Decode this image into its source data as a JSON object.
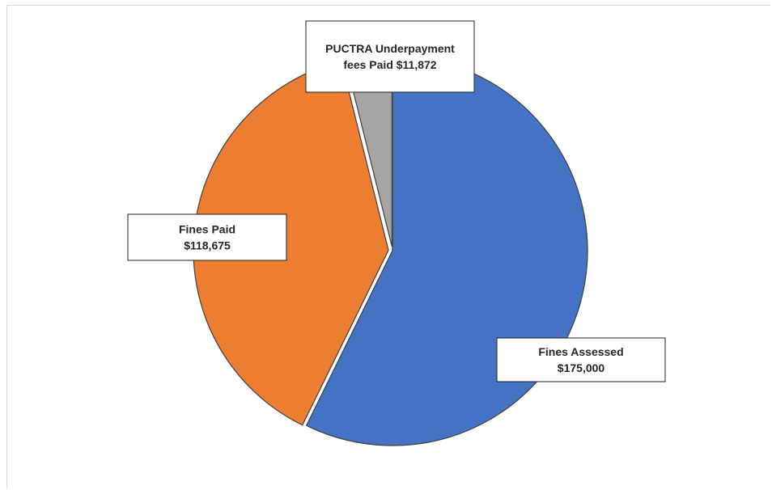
{
  "chart_data": {
    "type": "pie",
    "title": "",
    "slices": [
      {
        "label": "Fines Assessed",
        "value_text": "$175,000",
        "value": 175000,
        "color": "#4472C4"
      },
      {
        "label": "Fines Paid",
        "value_text": "$118,675",
        "value": 118675,
        "color": "#ED7D31"
      },
      {
        "label": "PUCTRA Underpayment fees Paid",
        "value_text": "$11,872",
        "value": 11872,
        "color": "#A5A5A5"
      }
    ],
    "data_labels": [
      {
        "lines": [
          "Fines Assessed",
          "$175,000"
        ]
      },
      {
        "lines": [
          "Fines Paid",
          "$118,675"
        ]
      },
      {
        "lines": [
          "PUCTRA Underpayment",
          "fees Paid $11,872"
        ]
      }
    ]
  }
}
